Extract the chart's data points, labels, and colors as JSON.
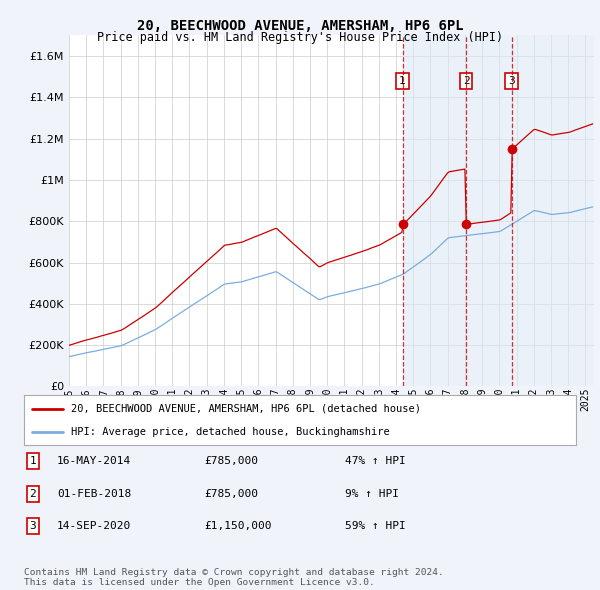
{
  "title": "20, BEECHWOOD AVENUE, AMERSHAM, HP6 6PL",
  "subtitle": "Price paid vs. HM Land Registry's House Price Index (HPI)",
  "ylim": [
    0,
    1700000
  ],
  "yticks": [
    0,
    200000,
    400000,
    600000,
    800000,
    1000000,
    1200000,
    1400000,
    1600000
  ],
  "ytick_labels": [
    "£0",
    "£200K",
    "£400K",
    "£600K",
    "£800K",
    "£1M",
    "£1.2M",
    "£1.4M",
    "£1.6M"
  ],
  "legend_line1": "20, BEECHWOOD AVENUE, AMERSHAM, HP6 6PL (detached house)",
  "legend_line2": "HPI: Average price, detached house, Buckinghamshire",
  "red_color": "#cc0000",
  "blue_color": "#7aade0",
  "shade_color": "#dce9f5",
  "transaction1_date": "16-MAY-2014",
  "transaction1_price": "£785,000",
  "transaction1_hpi": "47% ↑ HPI",
  "transaction1_year": 2014.375,
  "transaction1_value": 785000,
  "transaction2_date": "01-FEB-2018",
  "transaction2_price": "£785,000",
  "transaction2_hpi": "9% ↑ HPI",
  "transaction2_year": 2018.083,
  "transaction2_value": 785000,
  "transaction3_date": "14-SEP-2020",
  "transaction3_price": "£1,150,000",
  "transaction3_hpi": "59% ↑ HPI",
  "transaction3_year": 2020.708,
  "transaction3_value": 1150000,
  "footer": "Contains HM Land Registry data © Crown copyright and database right 2024.\nThis data is licensed under the Open Government Licence v3.0.",
  "background_color": "#f0f4fa",
  "plot_bg_color": "#ffffff",
  "xlim_left": 1995.0,
  "xlim_right": 2025.5
}
